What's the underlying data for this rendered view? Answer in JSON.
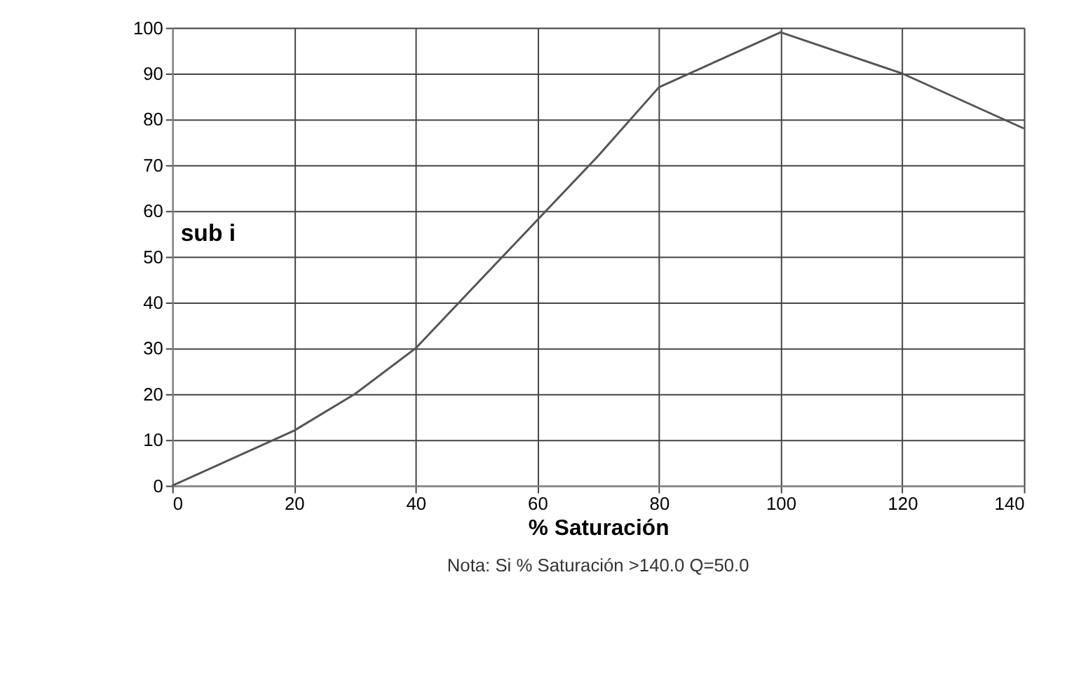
{
  "chart_data": {
    "type": "line",
    "xlabel": "% Saturación",
    "x": [
      0,
      20,
      30,
      40,
      50,
      60,
      70,
      80,
      90,
      100,
      120,
      140
    ],
    "series": [
      {
        "color": "#555555",
        "values": [
          0,
          12,
          20,
          30,
          44,
          58,
          72,
          87,
          93,
          99,
          90,
          78
        ]
      }
    ],
    "xlim": [
      0,
      140
    ],
    "xticks": [
      0,
      20,
      40,
      60,
      80,
      100,
      120,
      140
    ],
    "ylim": [
      0,
      100
    ],
    "yticks": [
      0,
      10,
      20,
      30,
      40,
      50,
      60,
      70,
      80,
      90,
      100
    ],
    "grid": true,
    "marker": "none",
    "line_style": "solid",
    "annotations": [
      "sub i",
      "Nota: Si % Saturación >140.0  Q=50.0"
    ]
  }
}
